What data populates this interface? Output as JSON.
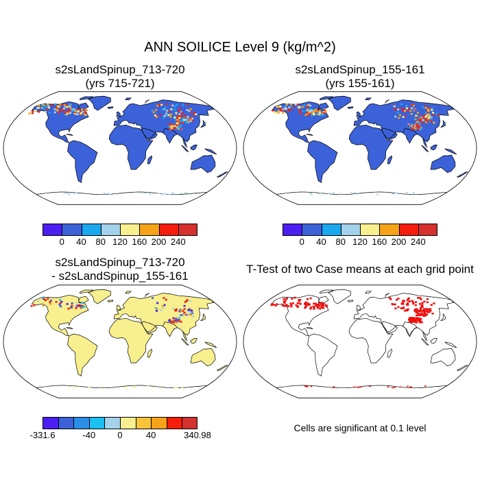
{
  "title": "ANN SOILICE Level 9 (kg/m^2)",
  "panels": [
    {
      "title_line1": "s2sLandSpinup_713-720",
      "title_line2": "(yrs 715-721)"
    },
    {
      "title_line1": "s2sLandSpinup_155-161",
      "title_line2": "(yrs 155-161)"
    },
    {
      "title_line1": "s2sLandSpinup_713-720",
      "title_line2": "- s2sLandSpinup_155-161"
    },
    {
      "title_line1": "T-Test of two Case means at each grid point"
    }
  ],
  "colorbar_abs": {
    "colors": [
      "#4b1ff2",
      "#3b62d8",
      "#19a7ef",
      "#a4d2ea",
      "#f8ef8e",
      "#f7a319",
      "#f51e0c",
      "#d5312e"
    ],
    "labels": [
      "0",
      "40",
      "80",
      "120",
      "160",
      "200",
      "240"
    ]
  },
  "colorbar_diff": {
    "colors": [
      "#4b1ff2",
      "#3b62d8",
      "#2a8ee8",
      "#19c0f0",
      "#a4d2ea",
      "#f8ef8e",
      "#f7c43b",
      "#f7a319",
      "#f51e0c",
      "#d5312e"
    ],
    "labels": [
      "-331.6",
      "-40",
      "0",
      "40",
      "340.98"
    ]
  },
  "significance_note": "Cells are significant at 0.1 level",
  "colors": {
    "land_abs": "#3b62d8",
    "land_diff": "#f8ef8e",
    "significant": "#ee1111",
    "coast": "#000000"
  }
}
